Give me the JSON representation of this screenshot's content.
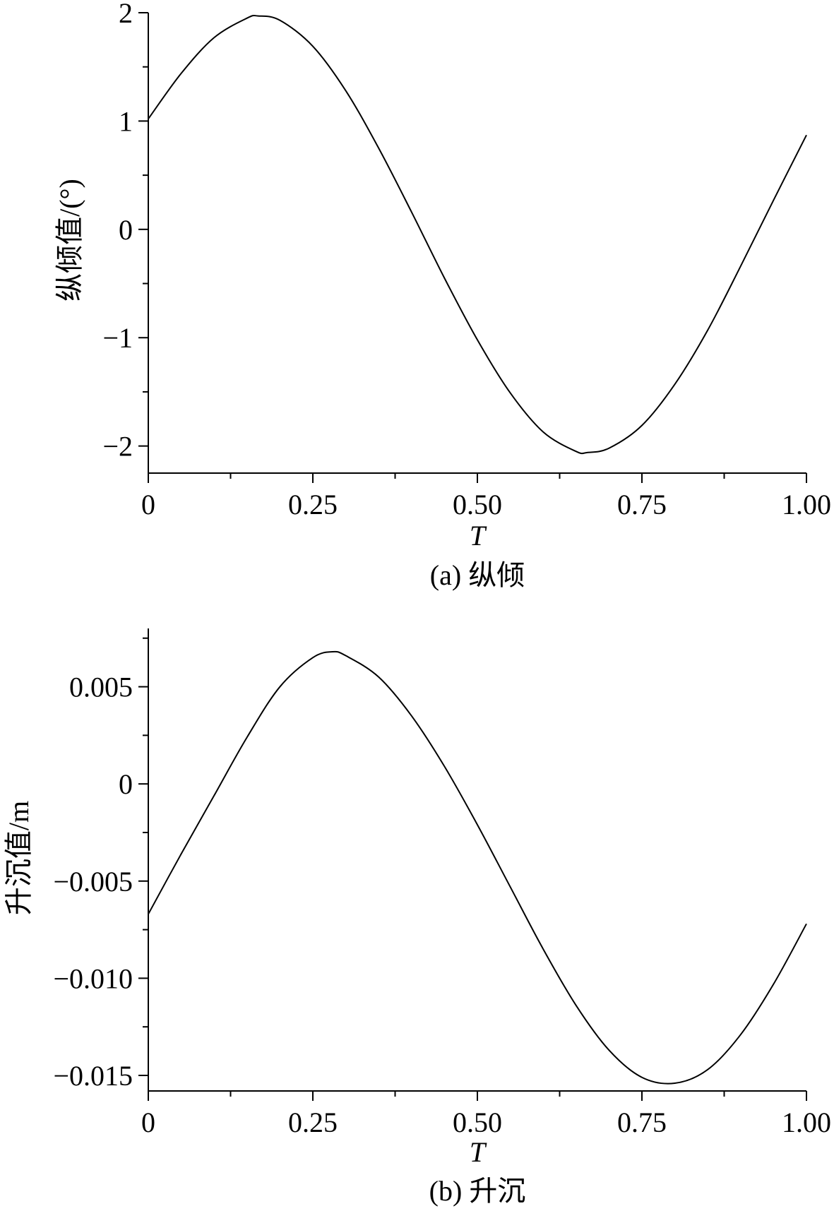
{
  "chart_data": [
    {
      "type": "line",
      "caption": "(a) 纵倾",
      "xlabel": "T",
      "ylabel": "纵倾值/(°)",
      "xlim": [
        0,
        1.0
      ],
      "ylim": [
        -2.25,
        2.0
      ],
      "xticks": [
        0,
        0.25,
        0.5,
        0.75,
        1.0
      ],
      "xtick_labels": [
        "0",
        "0.25",
        "0.50",
        "0.75",
        "1.00"
      ],
      "yticks": [
        2,
        1,
        0,
        -1,
        -2
      ],
      "ytick_labels": [
        "2",
        "1",
        "0",
        "−1",
        "−2"
      ],
      "grid": false,
      "series": [
        {
          "x": [
            0,
            0.05,
            0.1,
            0.15,
            0.167,
            0.2,
            0.25,
            0.3,
            0.35,
            0.4,
            0.45,
            0.5,
            0.55,
            0.6,
            0.65,
            0.667,
            0.7,
            0.75,
            0.8,
            0.85,
            0.9,
            0.95,
            1.0
          ],
          "y": [
            1.02,
            1.44,
            1.77,
            1.95,
            1.97,
            1.93,
            1.69,
            1.28,
            0.75,
            0.16,
            -0.45,
            -1.02,
            -1.51,
            -1.87,
            -2.05,
            -2.06,
            -2.02,
            -1.81,
            -1.43,
            -0.93,
            -0.34,
            0.27,
            0.87
          ]
        }
      ]
    },
    {
      "type": "line",
      "caption": "(b) 升沉",
      "xlabel": "T",
      "ylabel": "升沉值/m",
      "xlim": [
        0,
        1.0
      ],
      "ylim": [
        -0.0158,
        0.008
      ],
      "xticks": [
        0,
        0.25,
        0.5,
        0.75,
        1.0
      ],
      "xtick_labels": [
        "0",
        "0.25",
        "0.50",
        "0.75",
        "1.00"
      ],
      "yticks": [
        0.005,
        0,
        -0.005,
        -0.01,
        -0.015
      ],
      "ytick_labels": [
        "0.005",
        "0",
        "−0.005",
        "−0.010",
        "−0.015"
      ],
      "grid": false,
      "series": [
        {
          "x": [
            0,
            0.05,
            0.1,
            0.15,
            0.2,
            0.25,
            0.28,
            0.3,
            0.35,
            0.4,
            0.45,
            0.5,
            0.55,
            0.6,
            0.65,
            0.7,
            0.75,
            0.8,
            0.85,
            0.9,
            0.95,
            1.0
          ],
          "y": [
            -0.0067,
            -0.0036,
            -0.0006,
            0.0024,
            0.005,
            0.0065,
            0.0068,
            0.0066,
            0.0055,
            0.0035,
            0.0009,
            -0.0021,
            -0.0053,
            -0.0085,
            -0.0114,
            -0.0137,
            -0.0151,
            -0.0154,
            -0.0147,
            -0.0129,
            -0.0103,
            -0.0072
          ]
        }
      ]
    }
  ]
}
